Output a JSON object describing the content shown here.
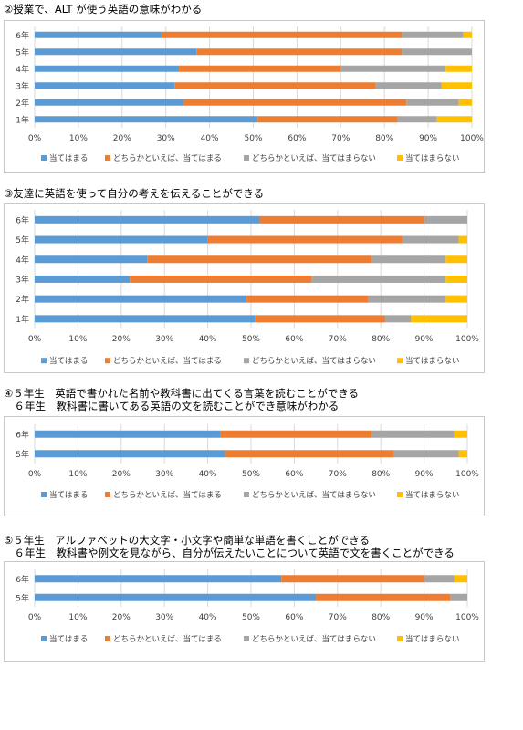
{
  "colors": {
    "s1": "#5b9bd5",
    "s2": "#ed7d31",
    "s3": "#a5a5a5",
    "s4": "#ffc000",
    "grid": "#d9d9d9",
    "text": "#404040"
  },
  "chart_data": [
    {
      "type": "bar",
      "title": [
        "②授業で、ALT が使う英語の意味がわかる"
      ],
      "categories": [
        "6年",
        "5年",
        "4年",
        "3年",
        "2年",
        "1年"
      ],
      "series": [
        {
          "name": "当てはまる",
          "values": [
            29,
            37,
            33,
            32,
            34,
            51
          ]
        },
        {
          "name": "どちらかといえば、当てはまる",
          "values": [
            55,
            47,
            37,
            46,
            51,
            32
          ]
        },
        {
          "name": "どちらかといえば、当てはまらない",
          "values": [
            14,
            16,
            24,
            15,
            12,
            9
          ]
        },
        {
          "name": "当てはまらない",
          "values": [
            2,
            0,
            6,
            7,
            3,
            8
          ]
        }
      ],
      "xticks": [
        "0%",
        "10%",
        "20%",
        "30%",
        "40%",
        "50%",
        "60%",
        "70%",
        "80%",
        "90%",
        "100%"
      ],
      "xlim": [
        0,
        100
      ],
      "stacked": true,
      "orientation": "horizontal",
      "grid": true,
      "legend": "bottom"
    },
    {
      "type": "bar",
      "title": [
        "③友達に英語を使って自分の考えを伝えることができる"
      ],
      "categories": [
        "6年",
        "5年",
        "4年",
        "3年",
        "2年",
        "1年"
      ],
      "series": [
        {
          "name": "当てはまる",
          "values": [
            52,
            40,
            26,
            22,
            49,
            51
          ]
        },
        {
          "name": "どちらかといえば、当てはまる",
          "values": [
            38,
            45,
            52,
            42,
            28,
            30
          ]
        },
        {
          "name": "どちらかといえば、当てはまらない",
          "values": [
            10,
            13,
            17,
            31,
            18,
            6
          ]
        },
        {
          "name": "当てはまらない",
          "values": [
            0,
            2,
            5,
            5,
            5,
            13
          ]
        }
      ],
      "xticks": [
        "0%",
        "10%",
        "20%",
        "30%",
        "40%",
        "50%",
        "60%",
        "70%",
        "80%",
        "90%",
        "100%"
      ],
      "xlim": [
        0,
        100
      ],
      "stacked": true,
      "orientation": "horizontal",
      "grid": true,
      "legend": "bottom"
    },
    {
      "type": "bar",
      "title": [
        "④５年生　英語で書かれた名前や教科書に出てくる言葉を読むことができる",
        "　６年生　教科書に書いてある英語の文を読むことができ意味がわかる"
      ],
      "categories": [
        "6年",
        "5年"
      ],
      "series": [
        {
          "name": "当てはまる",
          "values": [
            43,
            44
          ]
        },
        {
          "name": "どちらかといえば、当てはまる",
          "values": [
            35,
            39
          ]
        },
        {
          "name": "どちらかといえば、当てはまらない",
          "values": [
            19,
            15
          ]
        },
        {
          "name": "当てはまらない",
          "values": [
            3,
            2
          ]
        }
      ],
      "xticks": [
        "0%",
        "10%",
        "20%",
        "30%",
        "40%",
        "50%",
        "60%",
        "70%",
        "80%",
        "90%",
        "100%"
      ],
      "xlim": [
        0,
        100
      ],
      "stacked": true,
      "orientation": "horizontal",
      "grid": true,
      "legend": "bottom"
    },
    {
      "type": "bar",
      "title": [
        "⑤５年生　アルファベットの大文字・小文字や簡単な単語を書くことができる",
        "　６年生　教科書や例文を見ながら、自分が伝えたいことについて英語で文を書くことができる"
      ],
      "categories": [
        "6年",
        "5年"
      ],
      "series": [
        {
          "name": "当てはまる",
          "values": [
            57,
            65
          ]
        },
        {
          "name": "どちらかといえば、当てはまる",
          "values": [
            33,
            31
          ]
        },
        {
          "name": "どちらかといえば、当てはまらない",
          "values": [
            7,
            4
          ]
        },
        {
          "name": "当てはまらない",
          "values": [
            3,
            0
          ]
        }
      ],
      "xticks": [
        "0%",
        "10%",
        "20%",
        "30%",
        "40%",
        "50%",
        "60%",
        "70%",
        "80%",
        "90%",
        "100%"
      ],
      "xlim": [
        0,
        100
      ],
      "stacked": true,
      "orientation": "horizontal",
      "grid": true,
      "legend": "bottom"
    }
  ]
}
